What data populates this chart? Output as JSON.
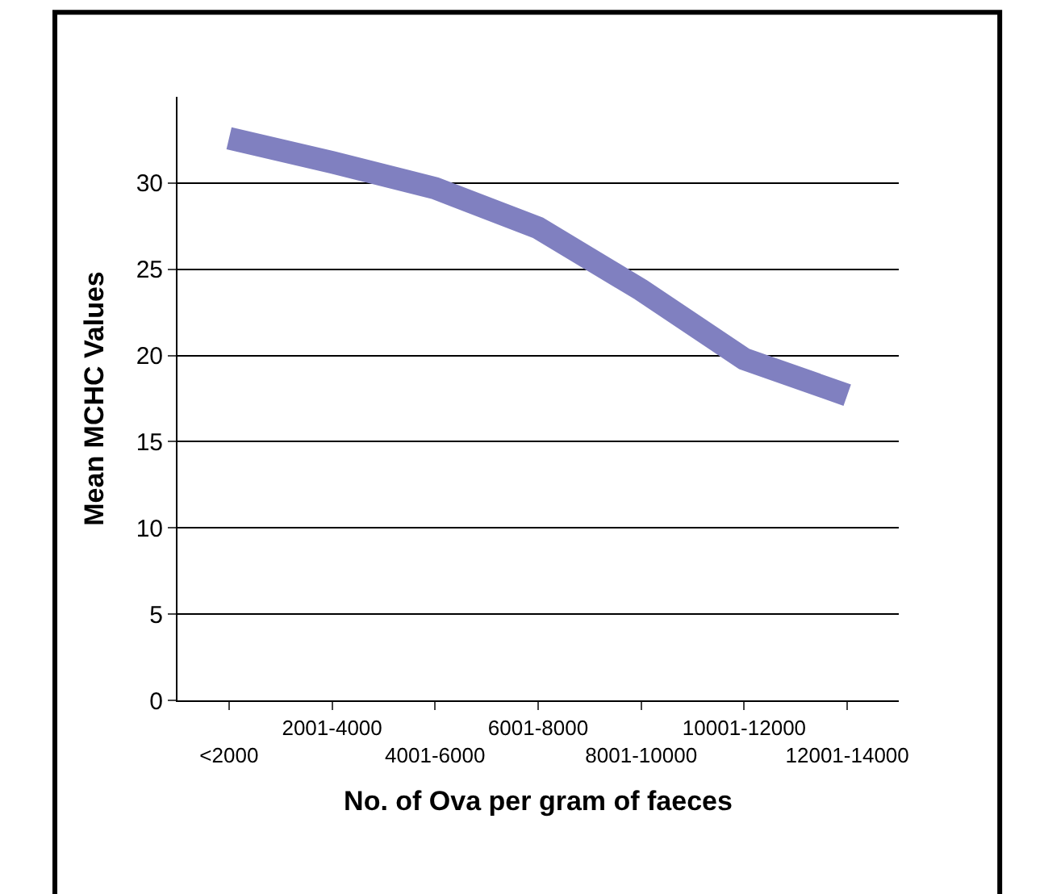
{
  "chart_data": {
    "type": "line",
    "xlabel": "No. of Ova per gram of faeces",
    "ylabel": "Mean MCHC Values",
    "categories": [
      "<2000",
      "2001-4000",
      "4001-6000",
      "6001-8000",
      "8001-10000",
      "10001-12000",
      "12001-14000"
    ],
    "series": [
      {
        "color": "#8080c0",
        "values": [
          32.6,
          31.2,
          29.7,
          27.4,
          23.8,
          19.8,
          17.7
        ]
      }
    ],
    "ylim": [
      0,
      35
    ],
    "yticks": [
      0,
      5,
      10,
      15,
      20,
      25,
      30
    ],
    "grid": "y",
    "marker": "none",
    "line_style": "solid"
  }
}
